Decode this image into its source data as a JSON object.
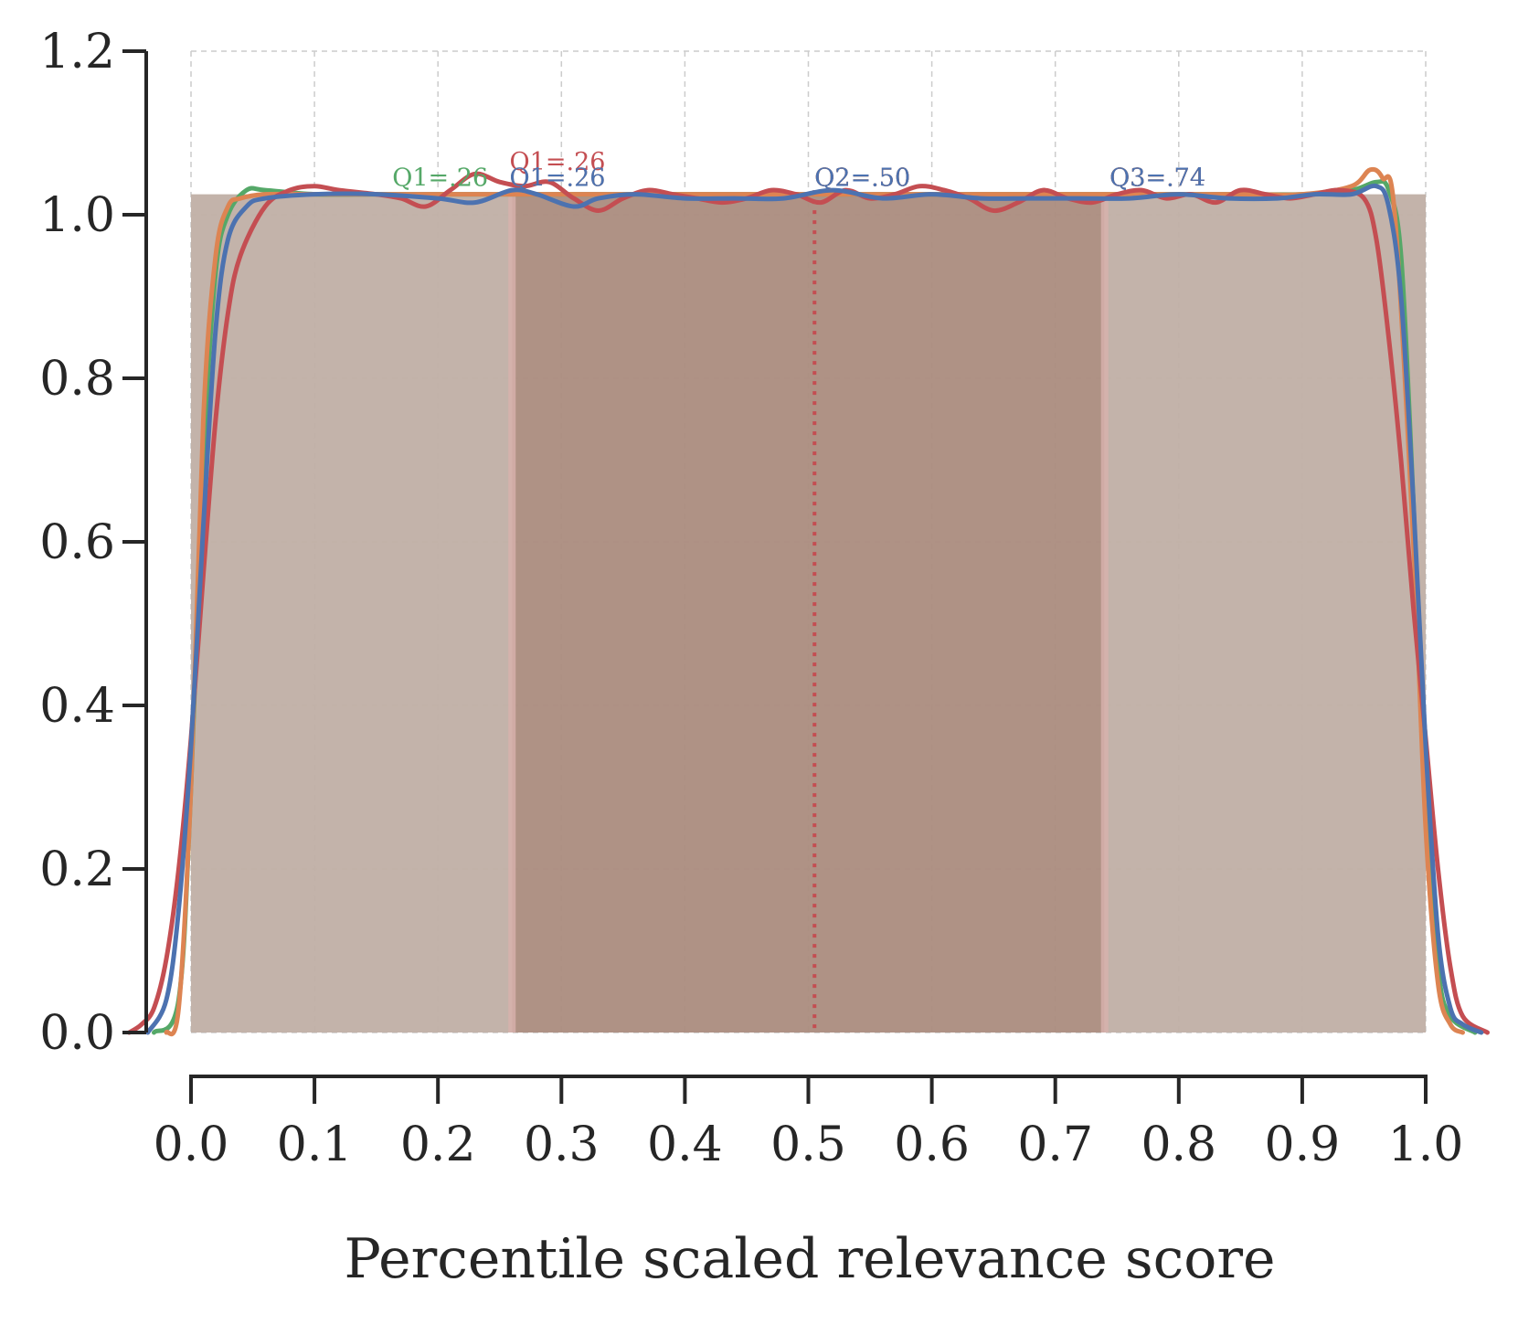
{
  "chart_data": {
    "type": "area",
    "title": "",
    "xlabel": "Percentile scaled relevance score",
    "ylabel": "",
    "xlim": [
      -0.05,
      1.05
    ],
    "ylim": [
      0,
      1.2
    ],
    "grid": true,
    "x_ticks": [
      "0.0",
      "0.1",
      "0.2",
      "0.3",
      "0.4",
      "0.5",
      "0.6",
      "0.7",
      "0.8",
      "0.9",
      "1.0"
    ],
    "y_ticks": [
      "0.0",
      "0.2",
      "0.4",
      "0.6",
      "0.8",
      "1.0",
      "1.2"
    ],
    "colors": {
      "green": "#55a868",
      "orange": "#dd8452",
      "red": "#c44e52",
      "blue": "#4c72b0",
      "fill_outer": "#c0afa5",
      "fill_inner": "#ab8c7e",
      "axis": "#262626",
      "grid": "#cccccc"
    },
    "series": [
      {
        "color": "#55a868",
        "x": [
          -0.03,
          -0.01,
          0.0,
          0.01,
          0.02,
          0.03,
          0.045,
          0.06,
          0.1,
          0.15,
          0.2,
          0.25,
          0.3,
          0.35,
          0.4,
          0.45,
          0.5,
          0.55,
          0.6,
          0.65,
          0.7,
          0.75,
          0.8,
          0.85,
          0.9,
          0.94,
          0.96,
          0.97,
          0.98,
          0.99,
          1.0,
          1.01,
          1.02,
          1.04
        ],
        "y": [
          0.0,
          0.04,
          0.3,
          0.7,
          0.93,
          1.0,
          1.03,
          1.03,
          1.025,
          1.025,
          1.025,
          1.025,
          1.025,
          1.025,
          1.025,
          1.025,
          1.025,
          1.025,
          1.025,
          1.025,
          1.025,
          1.025,
          1.025,
          1.025,
          1.025,
          1.03,
          1.04,
          1.03,
          0.95,
          0.65,
          0.3,
          0.08,
          0.02,
          0.0
        ]
      },
      {
        "color": "#dd8452",
        "x": [
          -0.02,
          -0.01,
          0.0,
          0.01,
          0.02,
          0.03,
          0.04,
          0.06,
          0.1,
          0.15,
          0.2,
          0.25,
          0.3,
          0.35,
          0.4,
          0.45,
          0.5,
          0.55,
          0.6,
          0.65,
          0.7,
          0.75,
          0.8,
          0.85,
          0.9,
          0.94,
          0.955,
          0.965,
          0.975,
          0.99,
          1.0,
          1.01,
          1.02,
          1.03
        ],
        "y": [
          0.0,
          0.03,
          0.3,
          0.75,
          0.95,
          1.01,
          1.02,
          1.025,
          1.025,
          1.025,
          1.025,
          1.025,
          1.025,
          1.025,
          1.025,
          1.025,
          1.025,
          1.025,
          1.025,
          1.025,
          1.025,
          1.025,
          1.025,
          1.025,
          1.025,
          1.035,
          1.055,
          1.045,
          1.0,
          0.6,
          0.25,
          0.06,
          0.01,
          0.0
        ]
      },
      {
        "color": "#c44e52",
        "x": [
          -0.05,
          -0.04,
          -0.03,
          -0.02,
          -0.01,
          0.0,
          0.01,
          0.02,
          0.03,
          0.04,
          0.06,
          0.08,
          0.1,
          0.12,
          0.15,
          0.17,
          0.19,
          0.21,
          0.23,
          0.25,
          0.27,
          0.29,
          0.31,
          0.33,
          0.35,
          0.37,
          0.39,
          0.41,
          0.43,
          0.45,
          0.47,
          0.49,
          0.51,
          0.53,
          0.55,
          0.57,
          0.59,
          0.61,
          0.63,
          0.65,
          0.67,
          0.69,
          0.71,
          0.73,
          0.75,
          0.77,
          0.79,
          0.81,
          0.83,
          0.85,
          0.87,
          0.89,
          0.91,
          0.93,
          0.95,
          0.96,
          0.97,
          0.98,
          0.99,
          1.0,
          1.01,
          1.02,
          1.03,
          1.05
        ],
        "y": [
          0.0,
          0.01,
          0.03,
          0.09,
          0.2,
          0.36,
          0.56,
          0.75,
          0.88,
          0.95,
          1.01,
          1.03,
          1.035,
          1.03,
          1.025,
          1.02,
          1.01,
          1.03,
          1.05,
          1.04,
          1.035,
          1.04,
          1.02,
          1.005,
          1.02,
          1.03,
          1.025,
          1.02,
          1.015,
          1.02,
          1.03,
          1.025,
          1.015,
          1.03,
          1.02,
          1.025,
          1.035,
          1.03,
          1.02,
          1.005,
          1.015,
          1.03,
          1.02,
          1.015,
          1.025,
          1.03,
          1.02,
          1.025,
          1.015,
          1.03,
          1.025,
          1.02,
          1.025,
          1.03,
          1.02,
          0.97,
          0.85,
          0.7,
          0.52,
          0.36,
          0.2,
          0.08,
          0.02,
          0.0
        ]
      },
      {
        "color": "#4c72b0",
        "x": [
          -0.035,
          -0.02,
          -0.01,
          0.0,
          0.01,
          0.02,
          0.03,
          0.045,
          0.06,
          0.1,
          0.15,
          0.2,
          0.23,
          0.26,
          0.28,
          0.31,
          0.33,
          0.36,
          0.4,
          0.44,
          0.48,
          0.52,
          0.56,
          0.6,
          0.64,
          0.68,
          0.72,
          0.76,
          0.8,
          0.84,
          0.88,
          0.91,
          0.94,
          0.96,
          0.97,
          0.98,
          0.99,
          1.0,
          1.01,
          1.02,
          1.03,
          1.045
        ],
        "y": [
          0.0,
          0.04,
          0.15,
          0.35,
          0.62,
          0.86,
          0.97,
          1.01,
          1.02,
          1.025,
          1.025,
          1.02,
          1.015,
          1.03,
          1.025,
          1.01,
          1.02,
          1.025,
          1.02,
          1.02,
          1.02,
          1.03,
          1.02,
          1.025,
          1.02,
          1.02,
          1.02,
          1.02,
          1.025,
          1.02,
          1.02,
          1.025,
          1.025,
          1.035,
          1.01,
          0.9,
          0.65,
          0.35,
          0.12,
          0.03,
          0.01,
          0.0
        ]
      }
    ],
    "quartile_bands": [
      {
        "from": 0.0,
        "to": 0.26,
        "fill": "#c0afa5"
      },
      {
        "from": 0.26,
        "to": 0.74,
        "fill": "#ab8c7e"
      },
      {
        "from": 0.74,
        "to": 1.0,
        "fill": "#c0afa5"
      }
    ],
    "band_top": 1.025,
    "median_line": {
      "x": 0.505,
      "color": "#c44e52"
    },
    "annotations": [
      {
        "text": "Q1=.26",
        "x": 0.163,
        "y": 1.035,
        "color": "#55a868"
      },
      {
        "text": "Q1=.26",
        "x": 0.258,
        "y": 1.035,
        "color": "#dd8452"
      },
      {
        "text": "Q1=.26",
        "x": 0.258,
        "y": 1.055,
        "color": "#c44e52"
      },
      {
        "text": "Q1=.26",
        "x": 0.258,
        "y": 1.035,
        "color": "#4c72b0"
      },
      {
        "text": "Q2=.50",
        "x": 0.505,
        "y": 1.035,
        "color": "#55a868"
      },
      {
        "text": "Q2=.50",
        "x": 0.505,
        "y": 1.035,
        "color": "#dd8452"
      },
      {
        "text": "Q2=.50",
        "x": 0.505,
        "y": 1.035,
        "color": "#c44e52"
      },
      {
        "text": "Q2=.50",
        "x": 0.505,
        "y": 1.035,
        "color": "#4c72b0"
      },
      {
        "text": "Q3=.74",
        "x": 0.744,
        "y": 1.035,
        "color": "#55a868"
      },
      {
        "text": "Q3=.74",
        "x": 0.744,
        "y": 1.035,
        "color": "#dd8452"
      },
      {
        "text": "Q3=.74",
        "x": 0.744,
        "y": 1.035,
        "color": "#c44e52"
      },
      {
        "text": "Q3=.74",
        "x": 0.744,
        "y": 1.035,
        "color": "#4c72b0"
      }
    ]
  }
}
